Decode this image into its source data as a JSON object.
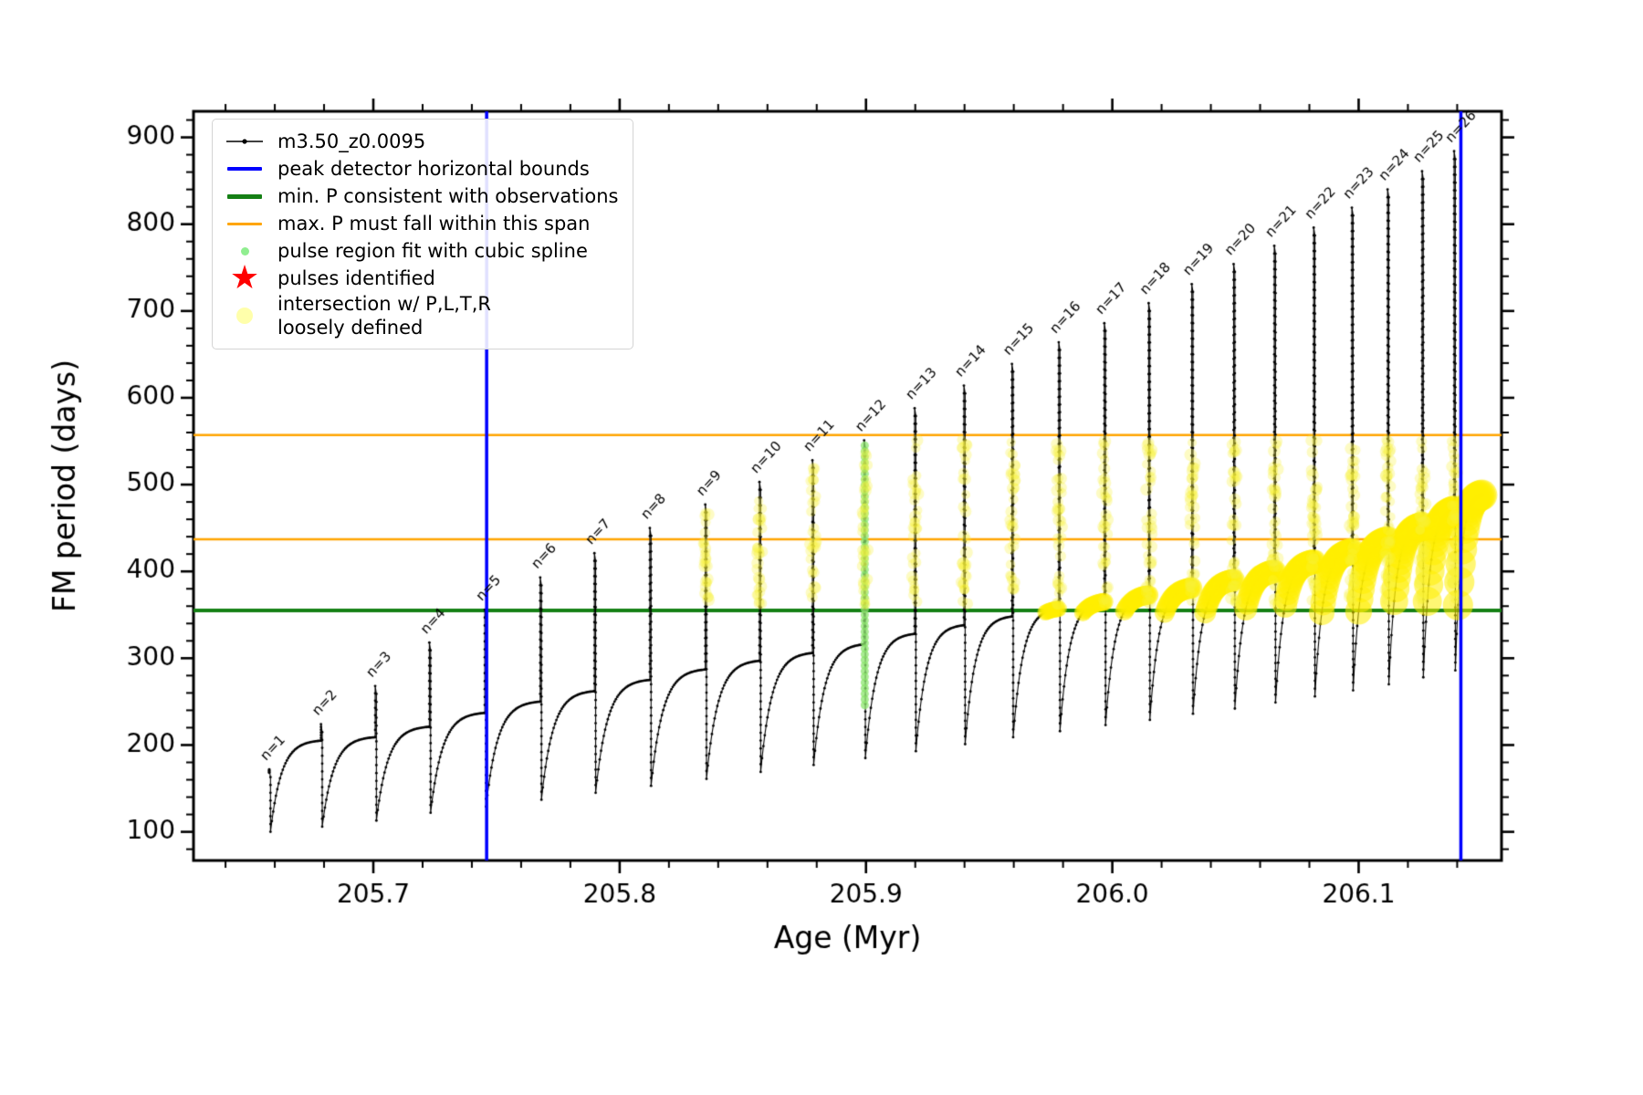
{
  "chart_data": {
    "type": "line",
    "title": "",
    "xlabel": "Age (Myr)",
    "ylabel": "FM period (days)",
    "xlim": [
      205.627,
      206.158
    ],
    "ylim": [
      67,
      930
    ],
    "x_major_ticks": [
      205.7,
      205.8,
      205.9,
      206.0,
      206.1
    ],
    "x_tick_labels": [
      "205.7",
      "205.8",
      "205.9",
      "206.0",
      "206.1"
    ],
    "x_minor_step": 0.02,
    "y_major_ticks": [
      100,
      200,
      300,
      400,
      500,
      600,
      700,
      800,
      900
    ],
    "y_tick_labels": [
      "100",
      "200",
      "300",
      "400",
      "500",
      "600",
      "700",
      "800",
      "900"
    ],
    "y_minor_step": 20,
    "grid": false,
    "legend_position": "upper-left",
    "series_label": "m3.50_z0.0095",
    "vertical_lines": {
      "color": "#0000ff",
      "x": [
        205.746,
        206.1415
      ],
      "label": "peak detector horizontal bounds"
    },
    "horizontal_lines": [
      {
        "y": 355,
        "color": "#158015",
        "lw": 4,
        "label": "min. P consistent with observations"
      },
      {
        "y": 437,
        "color": "#ffa500",
        "lw": 2.5,
        "label": "max. P must fall within this span"
      },
      {
        "y": 557,
        "color": "#ffa500",
        "lw": 2.5,
        "label": "max. P must fall within this span"
      }
    ],
    "pulses": {
      "label_prefix": "n=",
      "start_y": 168,
      "x": [
        205.658,
        205.679,
        205.701,
        205.723,
        205.7455,
        205.768,
        205.79,
        205.8125,
        205.835,
        205.857,
        205.8785,
        205.8995,
        205.92,
        205.94,
        205.9595,
        205.9785,
        205.997,
        206.015,
        206.0325,
        206.0495,
        206.066,
        206.082,
        206.0975,
        206.112,
        206.126,
        206.139
      ],
      "peak": [
        172,
        224,
        268,
        318,
        356,
        393,
        421,
        450,
        477,
        503,
        528,
        551,
        588,
        614,
        639,
        664,
        686,
        709,
        731,
        754,
        775,
        796,
        819,
        840,
        861,
        884
      ],
      "min_after": [
        100,
        106,
        113,
        122,
        129,
        137,
        145,
        153,
        161,
        169,
        177,
        185,
        193,
        201,
        209,
        216,
        223,
        229,
        236,
        242,
        249,
        256,
        263,
        270,
        278,
        286
      ],
      "plateau_next": [
        205,
        209,
        221,
        237,
        250,
        262,
        275,
        287,
        297,
        306,
        316,
        328,
        338,
        348,
        357,
        365,
        373,
        381,
        390,
        400,
        411,
        423,
        436,
        452,
        470,
        488
      ]
    },
    "curve_end_x": 206.15,
    "spline_region": {
      "x": 205.8995,
      "y_min": 246,
      "y_max": 549,
      "color": "rgba(140,230,110,0.75)",
      "radius": 4.5,
      "step": 6.5
    },
    "spike_scatter": {
      "first_pulse_n": 9,
      "y_min": 362,
      "y_max": 552,
      "color": "rgba(250,243,60,0.30)",
      "radius": 5
    },
    "intersection_band": {
      "x_min": 205.955,
      "y_min": 352,
      "color": "rgba(255,238,0,0.55)",
      "r_base": 8,
      "r_max": 17
    },
    "legend": [
      {
        "label": "m3.50_z0.0095",
        "type": "line-dot",
        "color": "#000000"
      },
      {
        "label": "peak detector horizontal bounds",
        "type": "line",
        "color": "#0000ff"
      },
      {
        "label": "min. P consistent with observations",
        "type": "line",
        "color": "#158015"
      },
      {
        "label": "max. P must fall within this span",
        "type": "line",
        "color": "#ffa500"
      },
      {
        "label": "pulse region fit with cubic spline",
        "type": "dot",
        "color": "#90ee90"
      },
      {
        "label": "pulses identified",
        "type": "star",
        "color": "#ff0000"
      },
      {
        "label": "intersection w/ P,L,T,R",
        "label2": "loosely defined",
        "type": "dot-large",
        "color": "#ffff66"
      }
    ]
  }
}
